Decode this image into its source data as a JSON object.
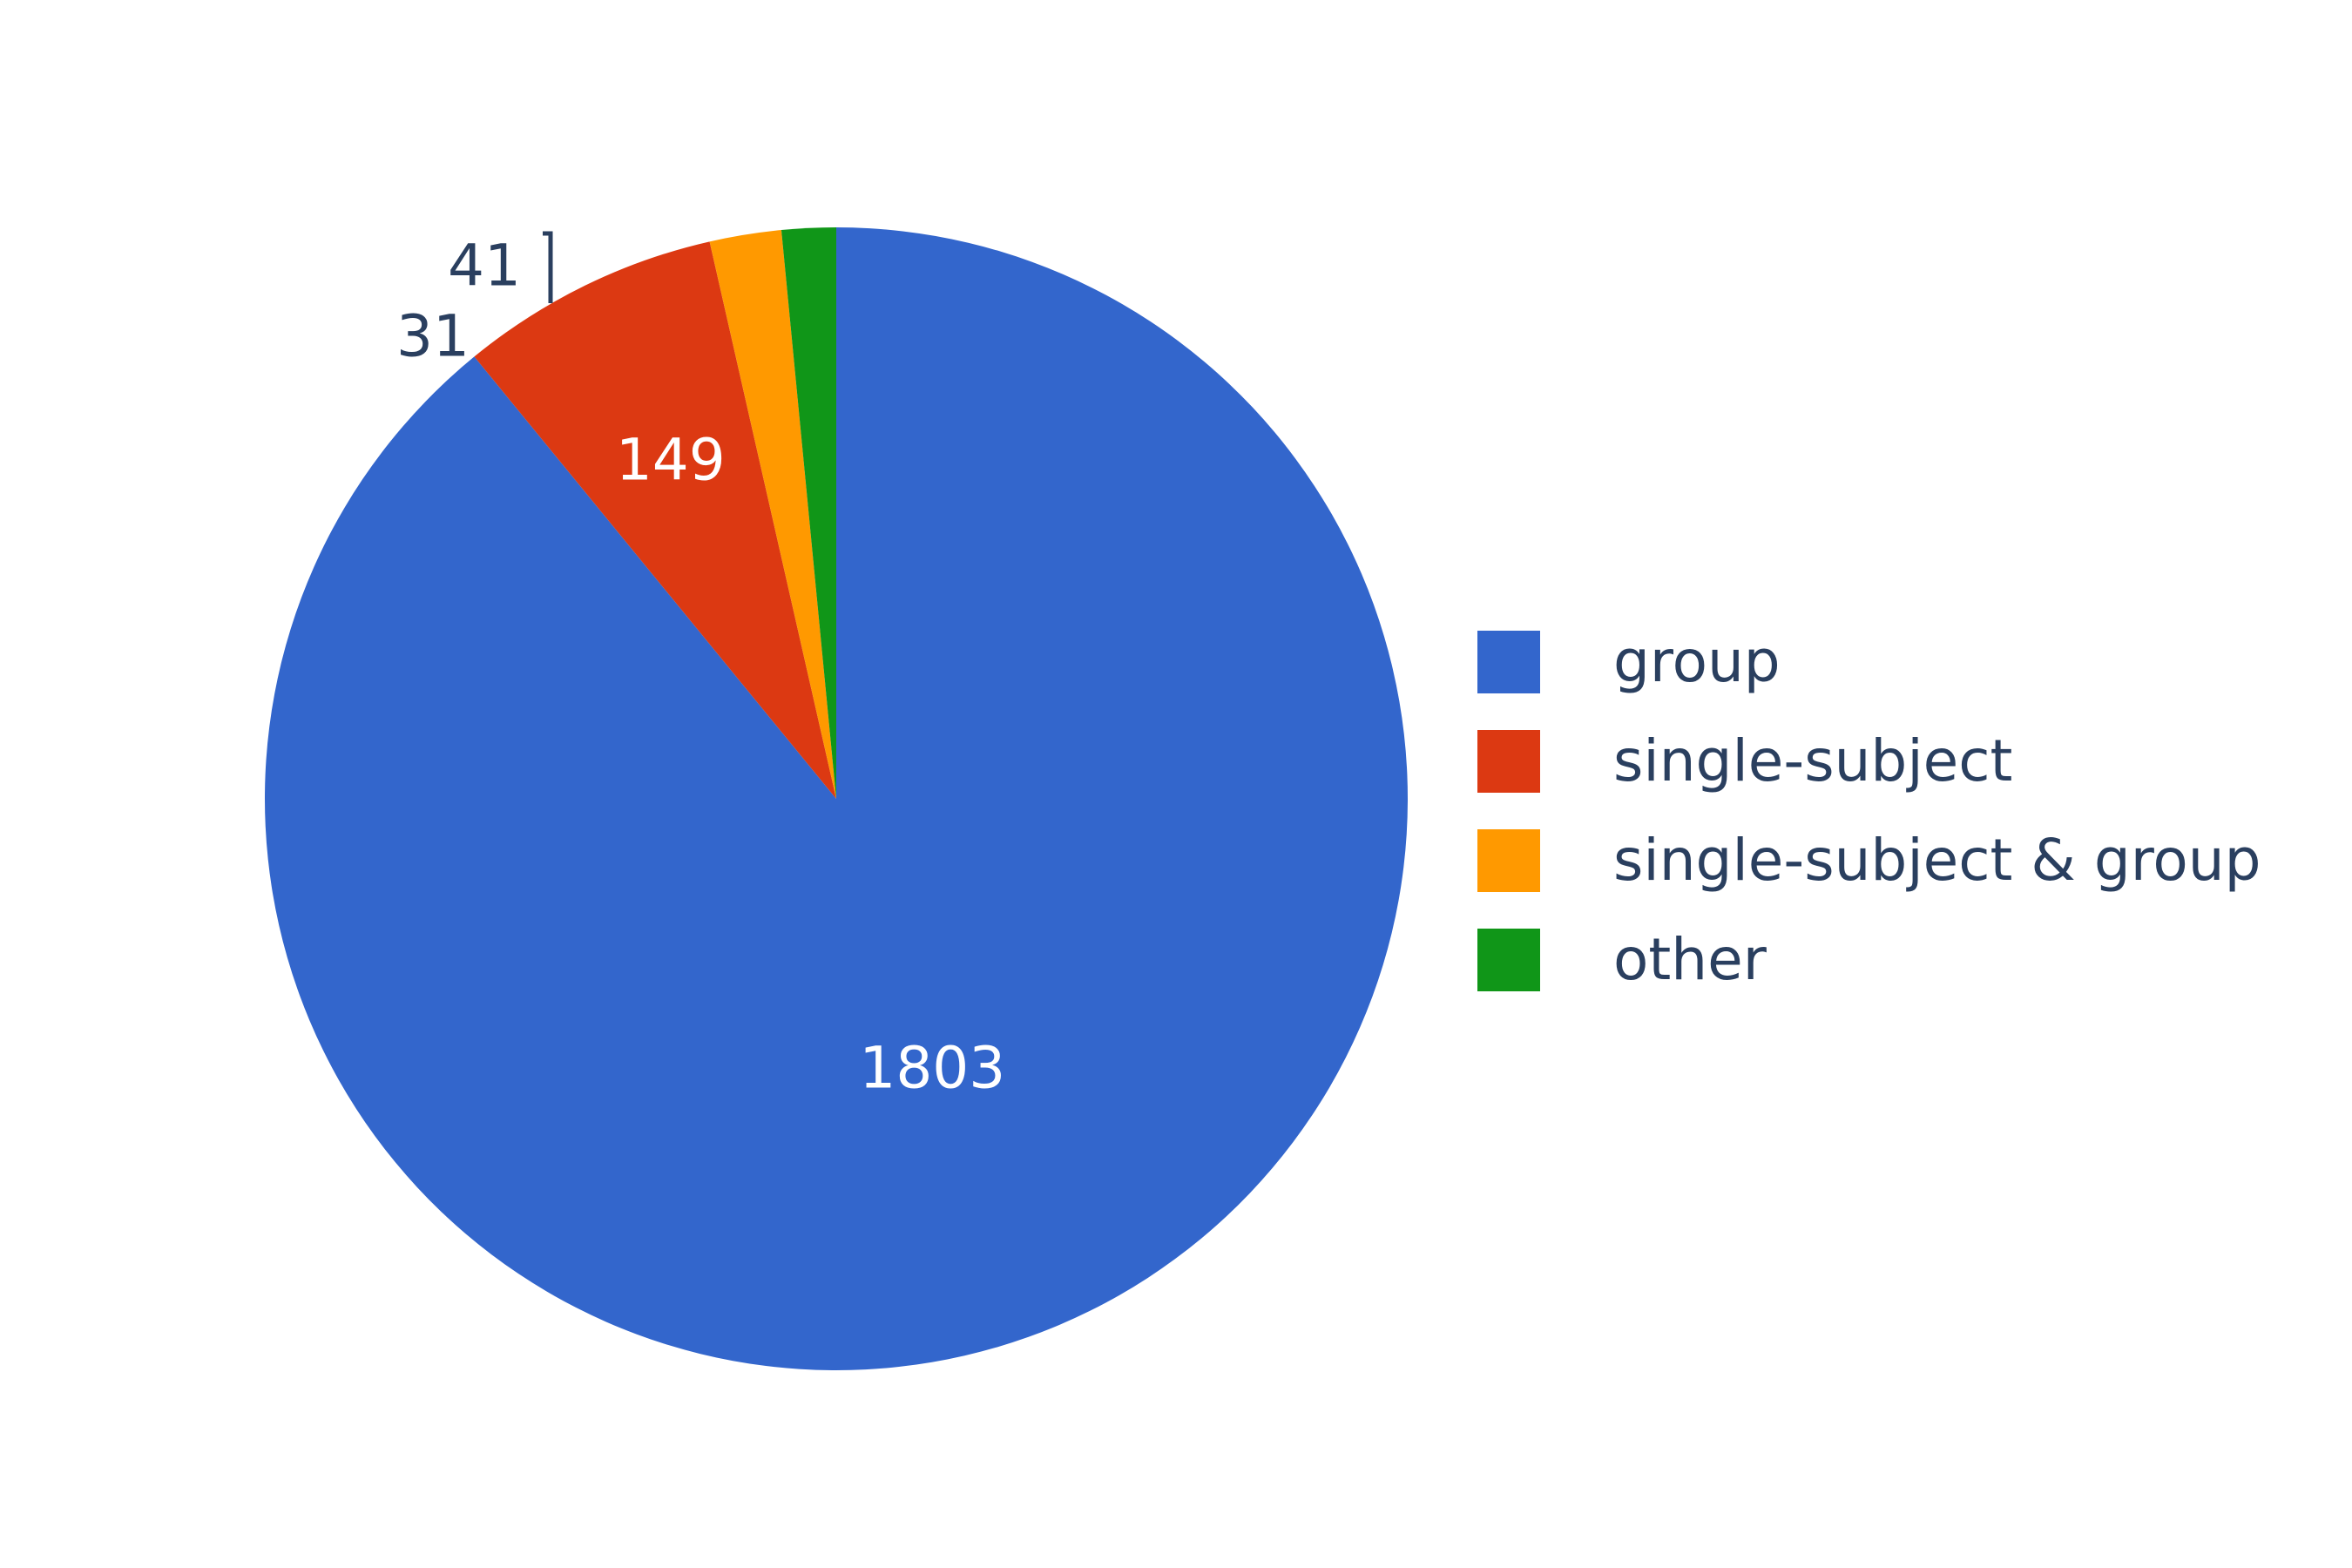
{
  "chart_data": {
    "type": "pie",
    "direction": "clockwise",
    "start": "12 o'clock",
    "slices": [
      {
        "label": "group",
        "value": 1803,
        "color": "#3366cc",
        "label_position": "inside",
        "label_color": "#ffffff"
      },
      {
        "label": "single-subject",
        "value": 149,
        "color": "#dc3912",
        "label_position": "inside",
        "label_color": "#ffffff"
      },
      {
        "label": "single-subject & group",
        "value": 41,
        "color": "#ff9900",
        "label_position": "outside",
        "label_color": "#2a3f5f"
      },
      {
        "label": "other",
        "value": 31,
        "color": "#109618",
        "label_position": "outside",
        "label_color": "#2a3f5f"
      }
    ],
    "legend_placement": "right"
  }
}
